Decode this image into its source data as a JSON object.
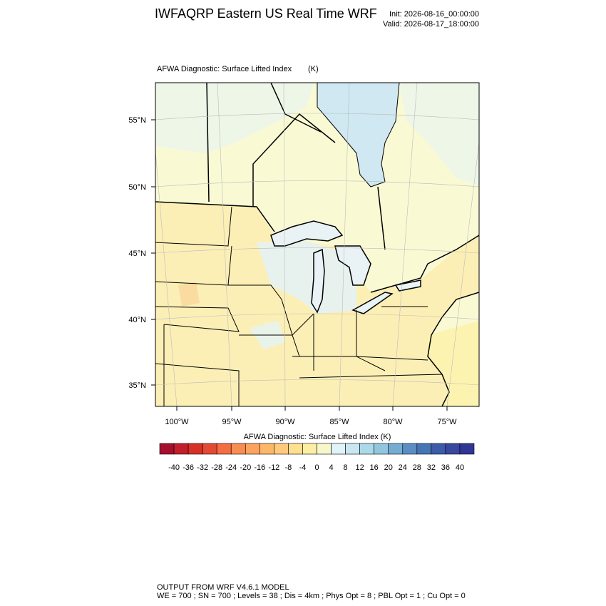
{
  "header": {
    "title": "IWFAQRP Eastern US Real Time WRF",
    "init": "Init: 2026-08-16_00:00:00",
    "valid": "Valid: 2026-08-17_18:00:00"
  },
  "map": {
    "title": "AFWA Diagnostic: Surface Lifted Index",
    "units": "(K)",
    "lat_labels": [
      "55°N",
      "50°N",
      "45°N",
      "40°N",
      "35°N"
    ],
    "lon_labels": [
      "100°W",
      "95°W",
      "90°W",
      "85°W",
      "80°W",
      "75°W"
    ]
  },
  "colorbar": {
    "title": "AFWA Diagnostic: Surface Lifted Index  (K)",
    "labels": [
      -40,
      -36,
      -32,
      -28,
      -24,
      -20,
      -16,
      -12,
      -8,
      -4,
      0,
      4,
      8,
      12,
      16,
      20,
      24,
      28,
      32,
      36,
      40
    ],
    "colors": [
      "#a50f2d",
      "#c21e2c",
      "#d73027",
      "#e34a33",
      "#f46d43",
      "#f88d52",
      "#fba35f",
      "#fdb769",
      "#fecb7d",
      "#fee090",
      "#fdeea6",
      "#f6f8cc",
      "#e0f3f8",
      "#c8e7f1",
      "#abd9e9",
      "#92c5de",
      "#74add1",
      "#5b8fc4",
      "#4575b4",
      "#3c5ba8",
      "#3a479f",
      "#313695"
    ]
  },
  "footer": {
    "line1": "OUTPUT FROM WRF V4.6.1 MODEL",
    "line2": "WE = 700 ; SN = 700 ; Levels = 38 ; Dis = 4km ; Phys Opt = 8 ; PBL Opt = 1 ; Cu Opt = 0"
  }
}
